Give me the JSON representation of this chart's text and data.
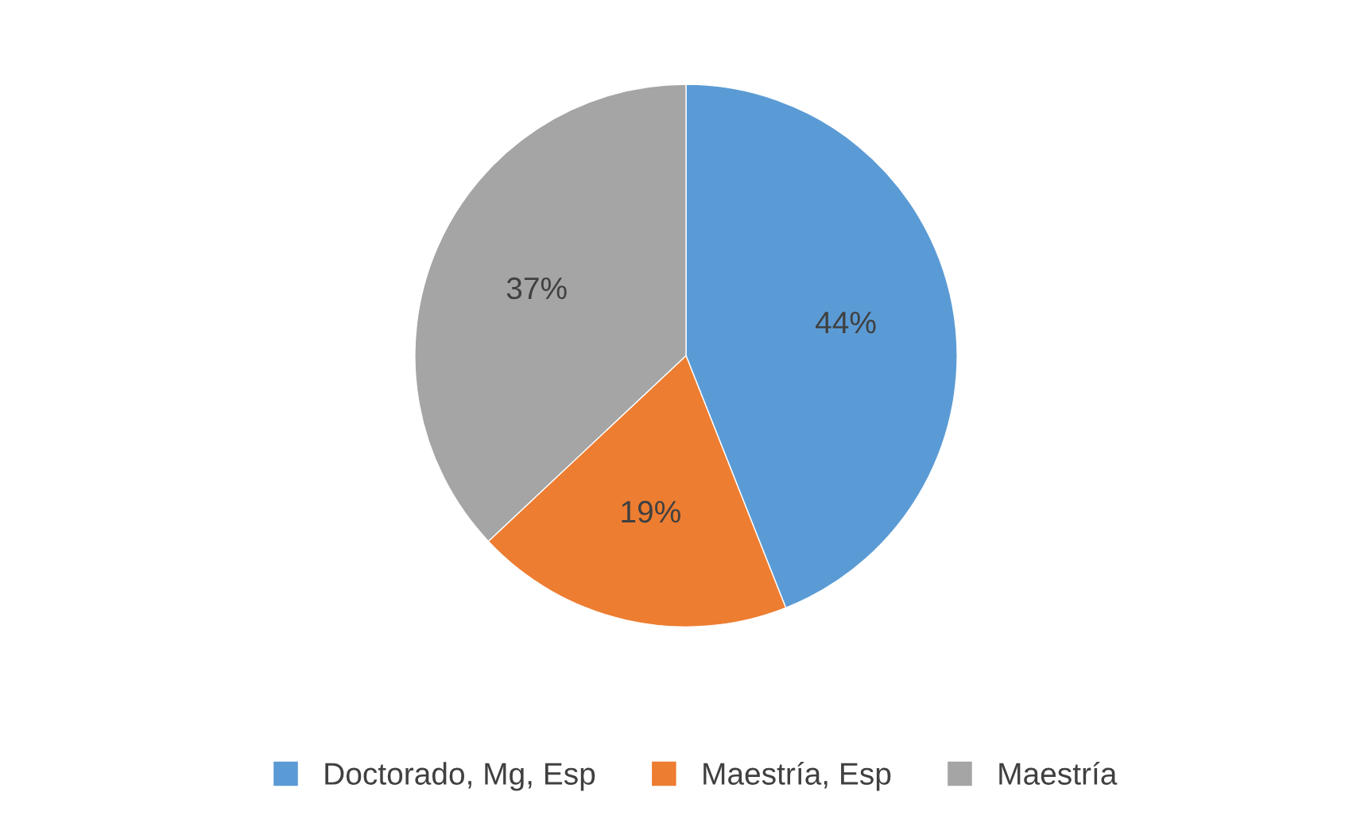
{
  "chart_data": {
    "type": "pie",
    "categories": [
      "Doctorado, Mg, Esp",
      "Maestría, Esp",
      "Maestría"
    ],
    "values": [
      44,
      19,
      37
    ],
    "colors": [
      "#5b9bd5",
      "#ed7d31",
      "#a5a5a5"
    ],
    "value_labels": [
      "44%",
      "19%",
      "37%"
    ],
    "legend": "bottom"
  }
}
